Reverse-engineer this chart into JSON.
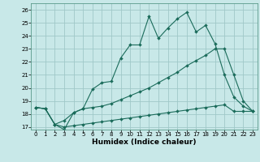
{
  "title": "",
  "xlabel": "Humidex (Indice chaleur)",
  "bg_color": "#c8e8e8",
  "grid_color": "#a0c8c8",
  "line_color": "#1a6b5a",
  "xlim": [
    -0.5,
    23.5
  ],
  "ylim": [
    16.8,
    26.5
  ],
  "xticks": [
    0,
    1,
    2,
    3,
    4,
    5,
    6,
    7,
    8,
    9,
    10,
    11,
    12,
    13,
    14,
    15,
    16,
    17,
    18,
    19,
    20,
    21,
    22,
    23
  ],
  "yticks": [
    17,
    18,
    19,
    20,
    21,
    22,
    23,
    24,
    25,
    26
  ],
  "line1_x": [
    0,
    1,
    2,
    3,
    4,
    5,
    6,
    7,
    8,
    9,
    10,
    11,
    12,
    13,
    14,
    15,
    16,
    17,
    18,
    19,
    20,
    21,
    22,
    23
  ],
  "line1_y": [
    18.5,
    18.4,
    17.2,
    16.8,
    18.1,
    18.4,
    19.9,
    20.4,
    20.5,
    22.3,
    23.3,
    23.3,
    25.5,
    23.8,
    24.6,
    25.3,
    25.8,
    24.3,
    24.8,
    23.4,
    21.0,
    19.3,
    18.6,
    18.2
  ],
  "line2_x": [
    0,
    1,
    2,
    3,
    4,
    5,
    6,
    7,
    8,
    9,
    10,
    11,
    12,
    13,
    14,
    15,
    16,
    17,
    18,
    19,
    20,
    21,
    22,
    23
  ],
  "line2_y": [
    18.5,
    18.4,
    17.2,
    17.5,
    18.1,
    18.4,
    18.5,
    18.6,
    18.8,
    19.1,
    19.4,
    19.7,
    20.0,
    20.4,
    20.8,
    21.2,
    21.7,
    22.1,
    22.5,
    23.0,
    23.0,
    21.0,
    19.0,
    18.2
  ],
  "line3_x": [
    0,
    1,
    2,
    3,
    4,
    5,
    6,
    7,
    8,
    9,
    10,
    11,
    12,
    13,
    14,
    15,
    16,
    17,
    18,
    19,
    20,
    21,
    22,
    23
  ],
  "line3_y": [
    18.5,
    18.4,
    17.2,
    17.0,
    17.1,
    17.2,
    17.3,
    17.4,
    17.5,
    17.6,
    17.7,
    17.8,
    17.9,
    18.0,
    18.1,
    18.2,
    18.3,
    18.4,
    18.5,
    18.6,
    18.7,
    18.2,
    18.2,
    18.2
  ]
}
